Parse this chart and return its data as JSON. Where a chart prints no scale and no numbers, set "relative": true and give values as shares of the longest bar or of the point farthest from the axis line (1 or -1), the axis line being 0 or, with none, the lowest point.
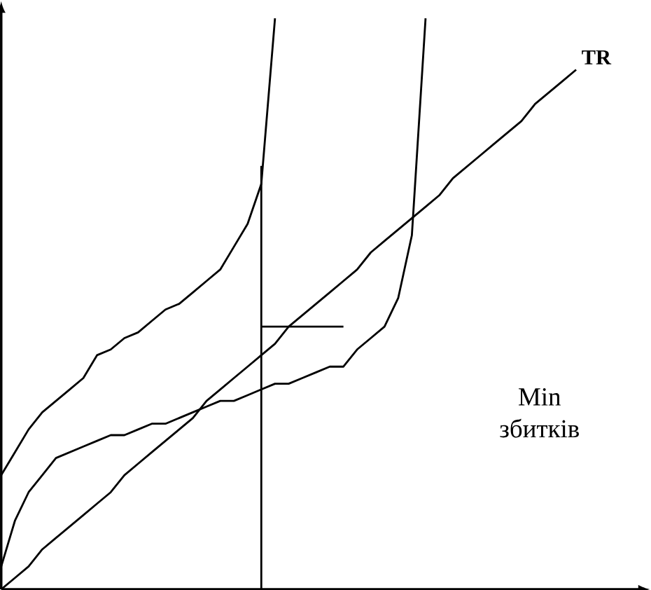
{
  "chart_data": {
    "type": "line",
    "relative": true,
    "marker": "none",
    "line_style": "solid",
    "categories": [
      null,
      null,
      null,
      null,
      null,
      null,
      null,
      null,
      null,
      null,
      null,
      null,
      null,
      null,
      null,
      null,
      null,
      null,
      null,
      null,
      null,
      null,
      null,
      null,
      null,
      null,
      null,
      null,
      null,
      null,
      null,
      null,
      null,
      null,
      null,
      null,
      null,
      null,
      null,
      null,
      null,
      null,
      null,
      null,
      null,
      null,
      null
    ],
    "series": [
      {
        "color": "#000000",
        "values": [
          0.2,
          0.24,
          0.28,
          0.31,
          0.33,
          0.35,
          0.37,
          0.41,
          0.42,
          0.44,
          0.45,
          0.47,
          0.49,
          0.5,
          0.52,
          0.54,
          0.56,
          0.6,
          0.64,
          0.71,
          1.0,
          null,
          null,
          null,
          null,
          null,
          null,
          null,
          null,
          null,
          null,
          null,
          null,
          null,
          null,
          null,
          null,
          null,
          null,
          null,
          null,
          null,
          null,
          null,
          null,
          null,
          null
        ]
      },
      {
        "color": "#000000",
        "values": [
          0.04,
          0.12,
          0.17,
          0.2,
          0.23,
          0.24,
          0.25,
          0.26,
          0.27,
          0.27,
          0.28,
          0.29,
          0.29,
          0.3,
          0.31,
          0.32,
          0.33,
          0.33,
          0.34,
          0.35,
          0.36,
          0.36,
          0.37,
          0.38,
          0.39,
          0.39,
          0.42,
          0.44,
          0.46,
          0.51,
          0.62,
          1.0,
          null,
          null,
          null,
          null,
          null,
          null,
          null,
          null,
          null,
          null,
          null,
          null,
          null,
          null,
          null
        ]
      },
      {
        "name": "TR",
        "color": "#000000",
        "values": [
          0,
          0.02,
          0.04,
          0.07,
          0.09,
          0.11,
          0.13,
          0.15,
          0.17,
          0.2,
          0.22,
          0.24,
          0.26,
          0.28,
          0.3,
          0.33,
          0.35,
          0.37,
          0.39,
          0.41,
          0.43,
          0.46,
          0.48,
          0.5,
          0.52,
          0.54,
          0.56,
          0.59,
          0.61,
          0.63,
          0.65,
          0.67,
          0.69,
          0.72,
          0.74,
          0.76,
          0.78,
          0.8,
          0.82,
          0.85,
          0.87,
          0.89,
          0.91,
          null,
          null,
          null,
          null
        ]
      },
      {
        "color": "#000000",
        "values": [
          null,
          null,
          null,
          null,
          null,
          null,
          null,
          null,
          null,
          null,
          null,
          null,
          null,
          null,
          null,
          null,
          null,
          null,
          null,
          0.46,
          0.46,
          0.46,
          0.46,
          0.46,
          0.46,
          0.46,
          null,
          null,
          null,
          null,
          null,
          null,
          null,
          null,
          null,
          null,
          null,
          null,
          null,
          null,
          null,
          null,
          null,
          null,
          null,
          null,
          null
        ]
      }
    ],
    "annotations": [
      "Min збитків"
    ]
  }
}
